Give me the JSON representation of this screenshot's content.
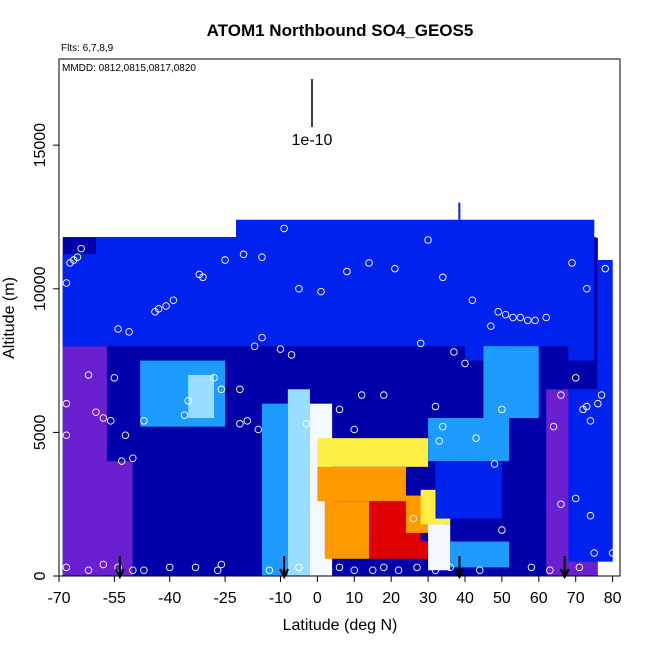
{
  "chart_data": {
    "type": "heatmap",
    "title": "ATOM1 Northbound SO4_GEOS5",
    "flights_label": "Flts: 6,7,8,9",
    "dates_label": "MMDD: 0812,0815,0817,0820",
    "scale_label": "1e-10",
    "xlabel": "Latitude (deg N)",
    "ylabel": "Altitude (m)",
    "xlim": [
      -70,
      82
    ],
    "ylim": [
      0,
      18000
    ],
    "x_ticks": [
      -70,
      -55,
      -40,
      -25,
      -10,
      0,
      10,
      20,
      30,
      40,
      50,
      60,
      70,
      80
    ],
    "y_ticks": [
      0,
      5000,
      10000,
      15000
    ],
    "legend": "none",
    "grid": false,
    "scale_bar_length": 1e-10,
    "arrow_latitudes": [
      -53.5,
      -9,
      38.5,
      67
    ],
    "colors": {
      "dark_blue": "#0000aa",
      "blue": "#0022ee",
      "light_blue": "#1e9bff",
      "cyan": "#99ddff",
      "white": "#f4f8ff",
      "yellow": "#ffee44",
      "orange": "#ff9900",
      "red": "#e00000",
      "purple": "#6a1fd0"
    },
    "field_cells": [
      {
        "lat": [
          -69,
          -50
        ],
        "alt": [
          0,
          4000
        ],
        "level": "purple"
      },
      {
        "lat": [
          -69,
          -57
        ],
        "alt": [
          4000,
          8000
        ],
        "level": "purple"
      },
      {
        "lat": [
          -69,
          -60
        ],
        "alt": [
          8000,
          11200
        ],
        "level": "blue"
      },
      {
        "lat": [
          -57,
          -48
        ],
        "alt": [
          4000,
          8000
        ],
        "level": "dark_blue"
      },
      {
        "lat": [
          -50,
          -20
        ],
        "alt": [
          0,
          5000
        ],
        "level": "dark_blue"
      },
      {
        "lat": [
          -60,
          -22
        ],
        "alt": [
          8000,
          11800
        ],
        "level": "blue"
      },
      {
        "lat": [
          -48,
          -25
        ],
        "alt": [
          5200,
          7500
        ],
        "level": "light_blue"
      },
      {
        "lat": [
          -35,
          -28
        ],
        "alt": [
          5500,
          7000
        ],
        "level": "cyan"
      },
      {
        "lat": [
          -22,
          -15
        ],
        "alt": [
          0,
          5500
        ],
        "level": "dark_blue"
      },
      {
        "lat": [
          -15,
          -8
        ],
        "alt": [
          0,
          6000
        ],
        "level": "light_blue"
      },
      {
        "lat": [
          -8,
          -2
        ],
        "alt": [
          0,
          6500
        ],
        "level": "cyan"
      },
      {
        "lat": [
          -2,
          4
        ],
        "alt": [
          0,
          6000
        ],
        "level": "white"
      },
      {
        "lat": [
          -22,
          40
        ],
        "alt": [
          8000,
          12400
        ],
        "level": "blue"
      },
      {
        "lat": [
          40,
          75
        ],
        "alt": [
          7500,
          12400
        ],
        "level": "blue"
      },
      {
        "lat": [
          0,
          30
        ],
        "alt": [
          3800,
          4800
        ],
        "level": "yellow"
      },
      {
        "lat": [
          0,
          24
        ],
        "alt": [
          2600,
          3800
        ],
        "level": "orange"
      },
      {
        "lat": [
          8,
          28
        ],
        "alt": [
          1200,
          2600
        ],
        "level": "red"
      },
      {
        "lat": [
          2,
          14
        ],
        "alt": [
          600,
          2600
        ],
        "level": "orange"
      },
      {
        "lat": [
          14,
          30
        ],
        "alt": [
          600,
          1200
        ],
        "level": "red"
      },
      {
        "lat": [
          24,
          34
        ],
        "alt": [
          1500,
          2800
        ],
        "level": "orange"
      },
      {
        "lat": [
          28,
          36
        ],
        "alt": [
          1800,
          3000
        ],
        "level": "yellow"
      },
      {
        "lat": [
          30,
          36
        ],
        "alt": [
          200,
          1800
        ],
        "level": "white"
      },
      {
        "lat": [
          36,
          52
        ],
        "alt": [
          300,
          1200
        ],
        "level": "light_blue"
      },
      {
        "lat": [
          30,
          52
        ],
        "alt": [
          4000,
          5500
        ],
        "level": "light_blue"
      },
      {
        "lat": [
          32,
          50
        ],
        "alt": [
          2000,
          4000
        ],
        "level": "blue"
      },
      {
        "lat": [
          52,
          68
        ],
        "alt": [
          0,
          8000
        ],
        "level": "dark_blue"
      },
      {
        "lat": [
          62,
          76
        ],
        "alt": [
          0,
          6500
        ],
        "level": "purple"
      },
      {
        "lat": [
          68,
          80
        ],
        "alt": [
          500,
          6500
        ],
        "level": "blue"
      },
      {
        "lat": [
          76,
          80
        ],
        "alt": [
          6500,
          11000
        ],
        "level": "blue"
      },
      {
        "lat": [
          45,
          60
        ],
        "alt": [
          5500,
          8000
        ],
        "level": "light_blue"
      }
    ],
    "observation_points": [
      {
        "lat": -68,
        "alt": 10200
      },
      {
        "lat": -67,
        "alt": 10900
      },
      {
        "lat": -66,
        "alt": 11000
      },
      {
        "lat": -65,
        "alt": 11100
      },
      {
        "lat": -64,
        "alt": 11400
      },
      {
        "lat": -68,
        "alt": 6000
      },
      {
        "lat": -68,
        "alt": 4900
      },
      {
        "lat": -62,
        "alt": 7000
      },
      {
        "lat": -60,
        "alt": 5700
      },
      {
        "lat": -58,
        "alt": 5500
      },
      {
        "lat": -56,
        "alt": 5400
      },
      {
        "lat": -55,
        "alt": 6900
      },
      {
        "lat": -54,
        "alt": 8600
      },
      {
        "lat": -51,
        "alt": 8500
      },
      {
        "lat": -52,
        "alt": 4900
      },
      {
        "lat": -53,
        "alt": 4000
      },
      {
        "lat": -50,
        "alt": 4100
      },
      {
        "lat": -47,
        "alt": 5400
      },
      {
        "lat": -44,
        "alt": 9200
      },
      {
        "lat": -43,
        "alt": 9300
      },
      {
        "lat": -41,
        "alt": 9400
      },
      {
        "lat": -39,
        "alt": 9600
      },
      {
        "lat": -32,
        "alt": 10500
      },
      {
        "lat": -31,
        "alt": 10400
      },
      {
        "lat": -25,
        "alt": 11000
      },
      {
        "lat": -20,
        "alt": 11200
      },
      {
        "lat": -15,
        "alt": 11100
      },
      {
        "lat": -9,
        "alt": 12100
      },
      {
        "lat": -17,
        "alt": 8000
      },
      {
        "lat": -15,
        "alt": 8300
      },
      {
        "lat": -10,
        "alt": 7900
      },
      {
        "lat": -7,
        "alt": 7700
      },
      {
        "lat": -28,
        "alt": 6900
      },
      {
        "lat": -26,
        "alt": 6500
      },
      {
        "lat": -21,
        "alt": 6500
      },
      {
        "lat": -35,
        "alt": 6100
      },
      {
        "lat": -36,
        "alt": 5600
      },
      {
        "lat": -21,
        "alt": 5300
      },
      {
        "lat": -19,
        "alt": 5400
      },
      {
        "lat": -16,
        "alt": 5100
      },
      {
        "lat": -3,
        "alt": 5300
      },
      {
        "lat": -1,
        "alt": 4600
      },
      {
        "lat": 3,
        "alt": 5000
      },
      {
        "lat": 6,
        "alt": 5800
      },
      {
        "lat": 10,
        "alt": 5100
      },
      {
        "lat": 12,
        "alt": 6300
      },
      {
        "lat": 18,
        "alt": 6300
      },
      {
        "lat": -5,
        "alt": 10000
      },
      {
        "lat": 1,
        "alt": 9900
      },
      {
        "lat": 8,
        "alt": 10600
      },
      {
        "lat": 14,
        "alt": 10900
      },
      {
        "lat": 21,
        "alt": 10700
      },
      {
        "lat": 28,
        "alt": 8100
      },
      {
        "lat": 30,
        "alt": 11700
      },
      {
        "lat": 34,
        "alt": 10400
      },
      {
        "lat": 37,
        "alt": 7800
      },
      {
        "lat": 40,
        "alt": 7400
      },
      {
        "lat": 42,
        "alt": 9600
      },
      {
        "lat": 47,
        "alt": 8700
      },
      {
        "lat": 49,
        "alt": 9200
      },
      {
        "lat": 51,
        "alt": 9100
      },
      {
        "lat": 53,
        "alt": 9000
      },
      {
        "lat": 55,
        "alt": 9000
      },
      {
        "lat": 57,
        "alt": 8900
      },
      {
        "lat": 59,
        "alt": 8900
      },
      {
        "lat": 62,
        "alt": 9000
      },
      {
        "lat": 32,
        "alt": 5900
      },
      {
        "lat": 34,
        "alt": 5200
      },
      {
        "lat": 33,
        "alt": 4700
      },
      {
        "lat": 43,
        "alt": 4800
      },
      {
        "lat": 48,
        "alt": 3900
      },
      {
        "lat": 50,
        "alt": 5800
      },
      {
        "lat": 26,
        "alt": 2000
      },
      {
        "lat": 50,
        "alt": 1600
      },
      {
        "lat": 64,
        "alt": 5200
      },
      {
        "lat": 66,
        "alt": 6300
      },
      {
        "lat": 70,
        "alt": 6900
      },
      {
        "lat": 72,
        "alt": 5800
      },
      {
        "lat": 73,
        "alt": 5900
      },
      {
        "lat": 74,
        "alt": 5400
      },
      {
        "lat": 76,
        "alt": 6000
      },
      {
        "lat": 77,
        "alt": 6300
      },
      {
        "lat": 69,
        "alt": 10900
      },
      {
        "lat": 73,
        "alt": 10000
      },
      {
        "lat": 76,
        "alt": 11900
      },
      {
        "lat": 78,
        "alt": 10700
      },
      {
        "lat": 66,
        "alt": 2500
      },
      {
        "lat": 70,
        "alt": 2700
      },
      {
        "lat": 74,
        "alt": 2100
      },
      {
        "lat": 75,
        "alt": 800
      },
      {
        "lat": 80,
        "alt": 800
      },
      {
        "lat": -68,
        "alt": 300
      },
      {
        "lat": -62,
        "alt": 200
      },
      {
        "lat": -58,
        "alt": 400
      },
      {
        "lat": -54,
        "alt": 300
      },
      {
        "lat": -50,
        "alt": 200
      },
      {
        "lat": -47,
        "alt": 200
      },
      {
        "lat": -40,
        "alt": 300
      },
      {
        "lat": -33,
        "alt": 300
      },
      {
        "lat": -27,
        "alt": 200
      },
      {
        "lat": -26,
        "alt": 400
      },
      {
        "lat": -13,
        "alt": 200
      },
      {
        "lat": -5,
        "alt": 300
      },
      {
        "lat": 3,
        "alt": 200
      },
      {
        "lat": 6,
        "alt": 300
      },
      {
        "lat": 10,
        "alt": 200
      },
      {
        "lat": 15,
        "alt": 200
      },
      {
        "lat": 18,
        "alt": 300
      },
      {
        "lat": 22,
        "alt": 200
      },
      {
        "lat": 27,
        "alt": 300
      },
      {
        "lat": 32,
        "alt": 200
      },
      {
        "lat": 36,
        "alt": 300
      },
      {
        "lat": 44,
        "alt": 200
      },
      {
        "lat": 58,
        "alt": 300
      },
      {
        "lat": 63,
        "alt": 200
      },
      {
        "lat": 71,
        "alt": 300
      }
    ]
  }
}
